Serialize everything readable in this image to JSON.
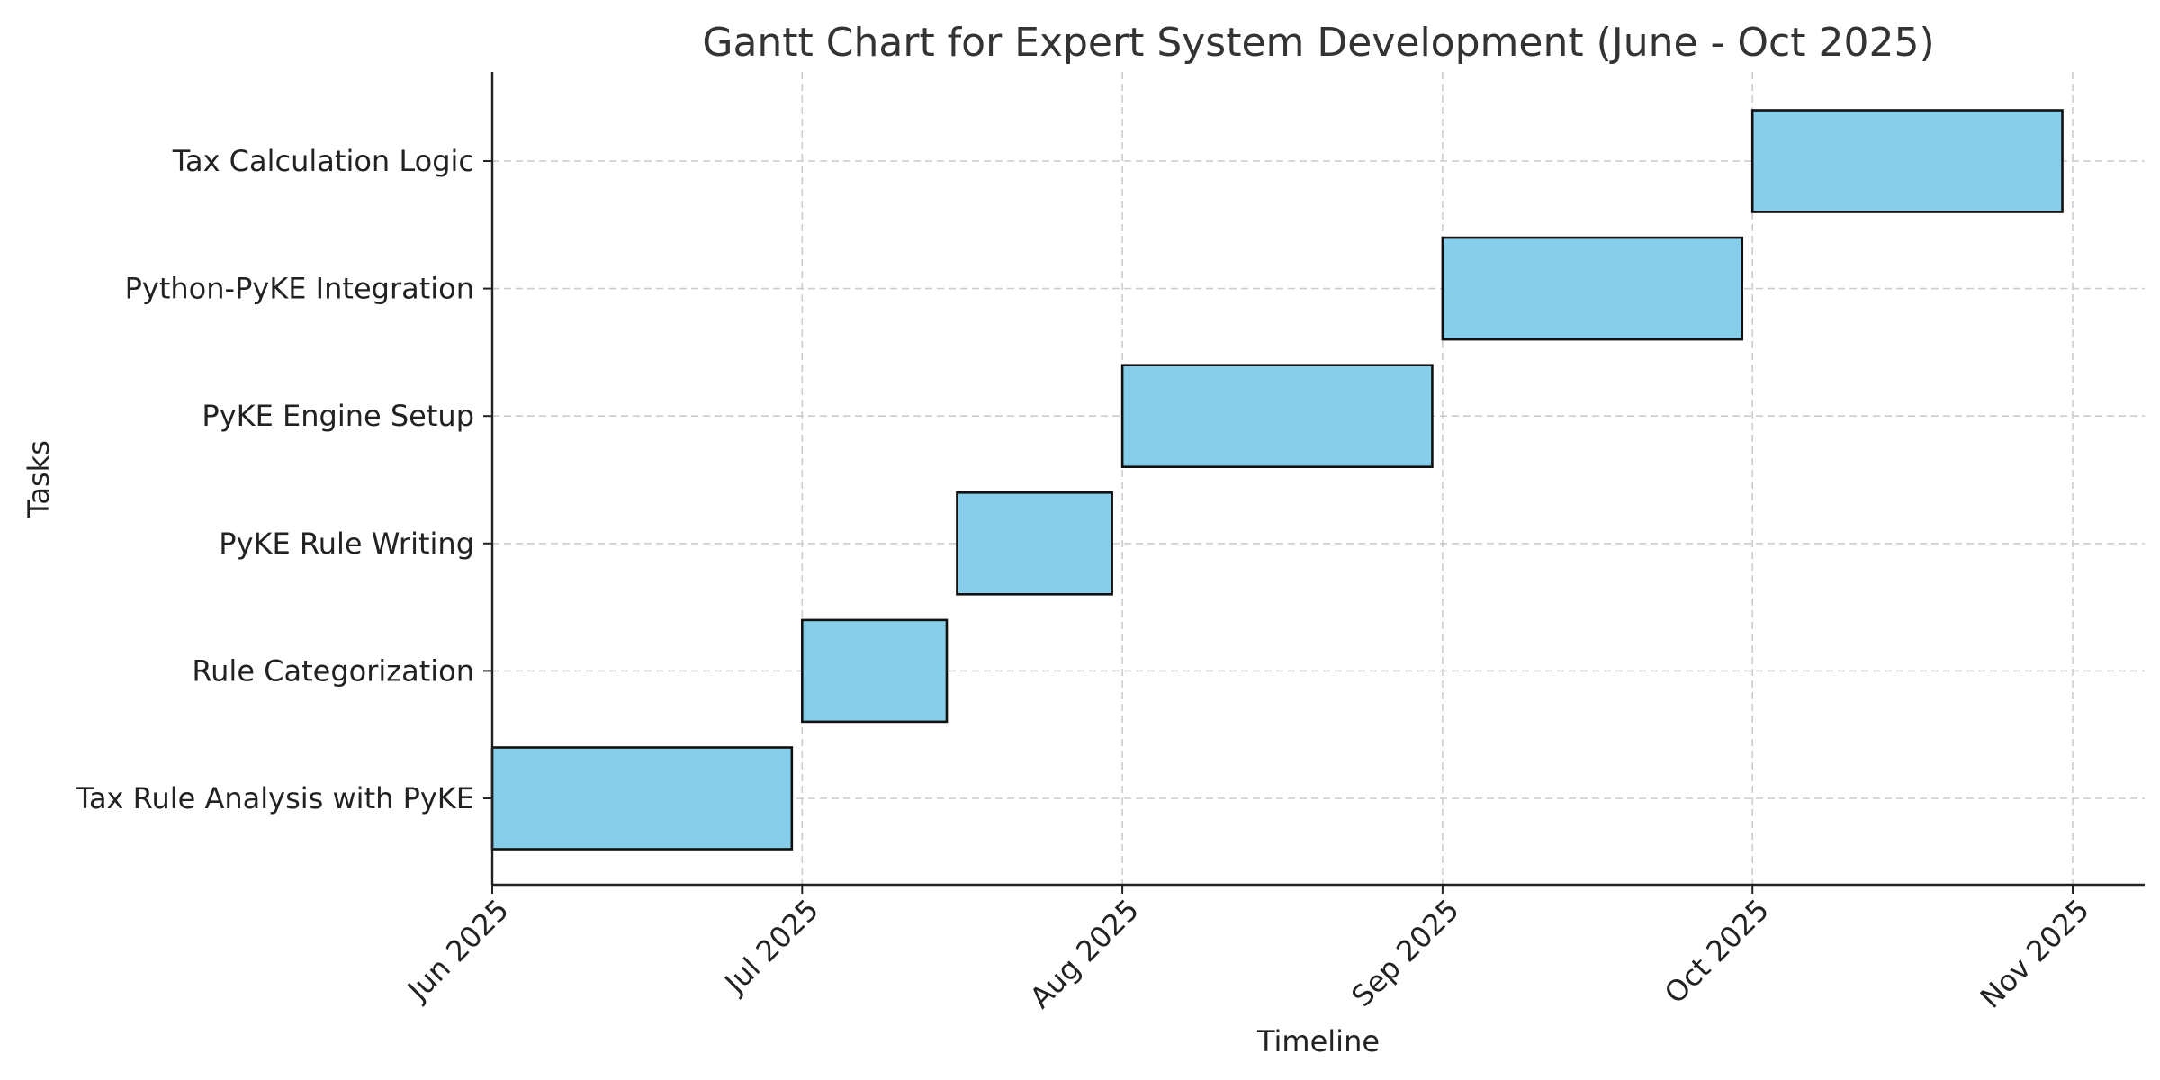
{
  "chart_data": {
    "type": "gantt",
    "title": "Gantt Chart for Expert System Development (June - Oct 2025)",
    "xlabel": "Timeline",
    "ylabel": "Tasks",
    "x_ticks": [
      {
        "label": "Jun 2025",
        "date": "2025-06-01"
      },
      {
        "label": "Jul 2025",
        "date": "2025-07-01"
      },
      {
        "label": "Aug 2025",
        "date": "2025-08-01"
      },
      {
        "label": "Sep 2025",
        "date": "2025-09-01"
      },
      {
        "label": "Oct 2025",
        "date": "2025-10-01"
      },
      {
        "label": "Nov 2025",
        "date": "2025-11-01"
      }
    ],
    "xlim": [
      "2025-06-01",
      "2025-11-07"
    ],
    "tasks": [
      {
        "name": "Tax Rule Analysis with PyKE",
        "start": "2025-06-01",
        "end": "2025-06-30"
      },
      {
        "name": "Rule Categorization",
        "start": "2025-07-01",
        "end": "2025-07-15"
      },
      {
        "name": "PyKE Rule Writing",
        "start": "2025-07-16",
        "end": "2025-07-31"
      },
      {
        "name": "PyKE Engine Setup",
        "start": "2025-08-01",
        "end": "2025-08-31"
      },
      {
        "name": "Python-PyKE Integration",
        "start": "2025-09-01",
        "end": "2025-09-30"
      },
      {
        "name": "Tax Calculation Logic",
        "start": "2025-10-01",
        "end": "2025-10-31"
      }
    ],
    "grid": true,
    "bar_color": "#87CEEB",
    "bar_edge_color": "#111111"
  }
}
